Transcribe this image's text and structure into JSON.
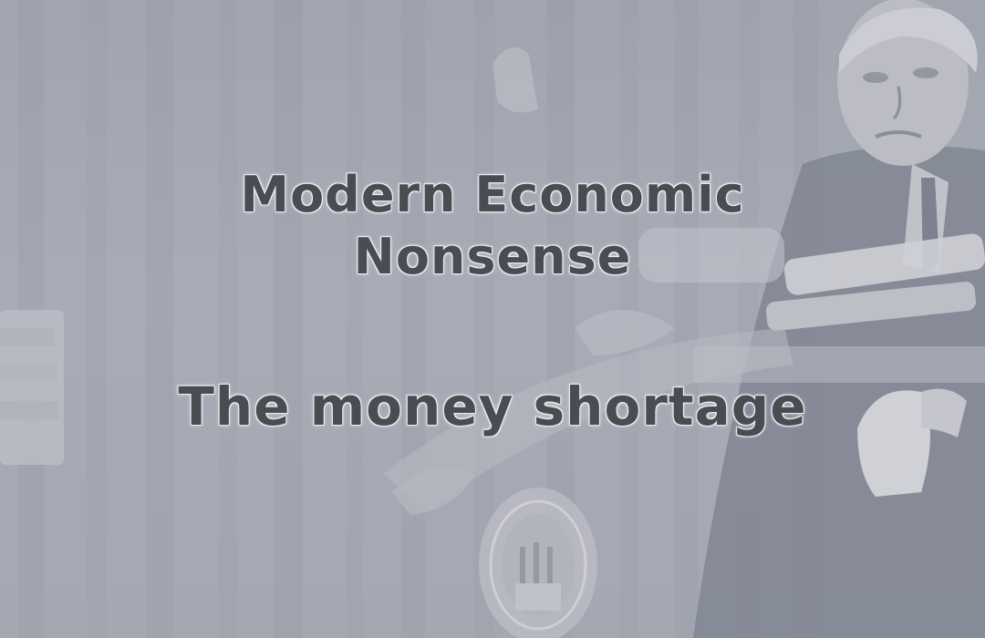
{
  "image": {
    "title_lines": [
      "Modern Economic",
      "Nonsense"
    ],
    "subtitle": "The money shortage"
  },
  "colors": {
    "background": "#a7abb6",
    "text": "#4a4c52",
    "text_outline": "#f1f2f5"
  }
}
